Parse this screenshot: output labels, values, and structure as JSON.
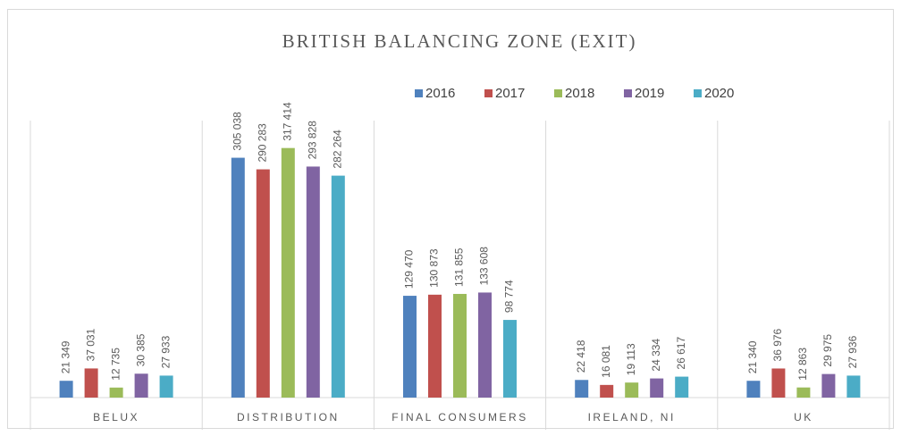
{
  "chart_data": {
    "type": "bar",
    "title": "BRITISH BALANCING ZONE (EXIT)",
    "categories": [
      "BELUX",
      "DISTRIBUTION",
      "FINAL CONSUMERS",
      "IRELAND, NI",
      "UK"
    ],
    "ylim": [
      0,
      350000
    ],
    "legend": "top",
    "series": [
      {
        "name": "2016",
        "color": "#4f81bd",
        "values": [
          21349,
          305038,
          129470,
          22418,
          21340
        ],
        "value_labels": [
          "21 349",
          "305 038",
          "129 470",
          "22 418",
          "21 340"
        ]
      },
      {
        "name": "2017",
        "color": "#c0504d",
        "values": [
          37031,
          290283,
          130873,
          16081,
          36976
        ],
        "value_labels": [
          "37 031",
          "290 283",
          "130 873",
          "16 081",
          "36 976"
        ]
      },
      {
        "name": "2018",
        "color": "#9bbb59",
        "values": [
          12735,
          317414,
          131855,
          19113,
          12863
        ],
        "value_labels": [
          "12 735",
          "317 414",
          "131 855",
          "19 113",
          "12 863"
        ]
      },
      {
        "name": "2019",
        "color": "#8064a2",
        "values": [
          30385,
          293828,
          133608,
          24334,
          29975
        ],
        "value_labels": [
          "30 385",
          "293 828",
          "133 608",
          "24 334",
          "29 975"
        ]
      },
      {
        "name": "2020",
        "color": "#4bacc6",
        "values": [
          27933,
          282264,
          98774,
          26617,
          27936
        ],
        "value_labels": [
          "27 933",
          "282 264",
          "98 774",
          "26 617",
          "27 936"
        ]
      }
    ]
  }
}
